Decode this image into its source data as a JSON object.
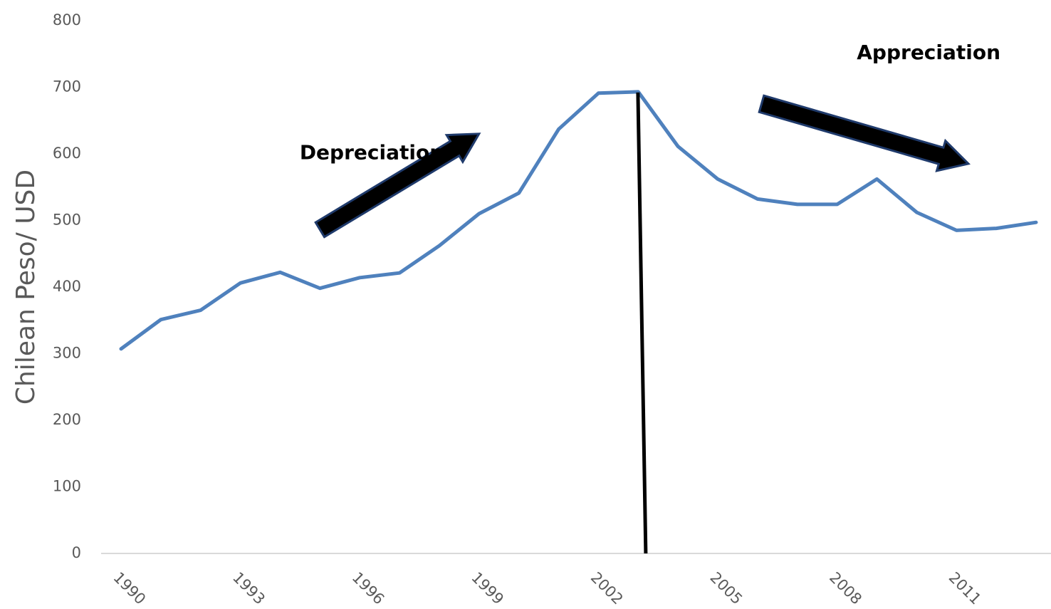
{
  "chart_data": {
    "type": "line",
    "title": "",
    "xlabel": "",
    "ylabel": "Chilean Peso/ USD",
    "ylim": [
      0,
      800
    ],
    "yticks": [
      0,
      100,
      200,
      300,
      400,
      500,
      600,
      700,
      800
    ],
    "xlim": [
      1990,
      2013
    ],
    "xticks": [
      1990,
      1993,
      1996,
      1999,
      2002,
      2005,
      2008,
      2011
    ],
    "grid": false,
    "legend": "none",
    "series": [
      {
        "color": "#4f81bd",
        "x": [
          1990,
          1991,
          1992,
          1993,
          1994,
          1995,
          1996,
          1997,
          1998,
          1999,
          2000,
          2001,
          2002,
          2003,
          2004,
          2005,
          2006,
          2007,
          2008,
          2009,
          2010,
          2011,
          2012,
          2013
        ],
        "values": [
          305,
          349,
          363,
          404,
          420,
          396,
          412,
          419,
          460,
          508,
          539,
          635,
          689,
          691,
          609,
          560,
          530,
          522,
          522,
          560,
          510,
          483,
          486,
          495
        ]
      }
    ],
    "marker_line": {
      "x": 2003.1,
      "y_top": 690,
      "color": "#000000"
    },
    "annotations": [
      {
        "text": "Depreciation",
        "x": 1996.3,
        "y": 590
      },
      {
        "text": "Appreciation",
        "x": 2010.3,
        "y": 740
      }
    ],
    "arrows": [
      {
        "from": [
          1995.0,
          484
        ],
        "to": [
          1999.0,
          628
        ],
        "direction": "up"
      },
      {
        "from": [
          2006.1,
          673
        ],
        "to": [
          2011.3,
          583
        ],
        "direction": "down"
      }
    ]
  }
}
